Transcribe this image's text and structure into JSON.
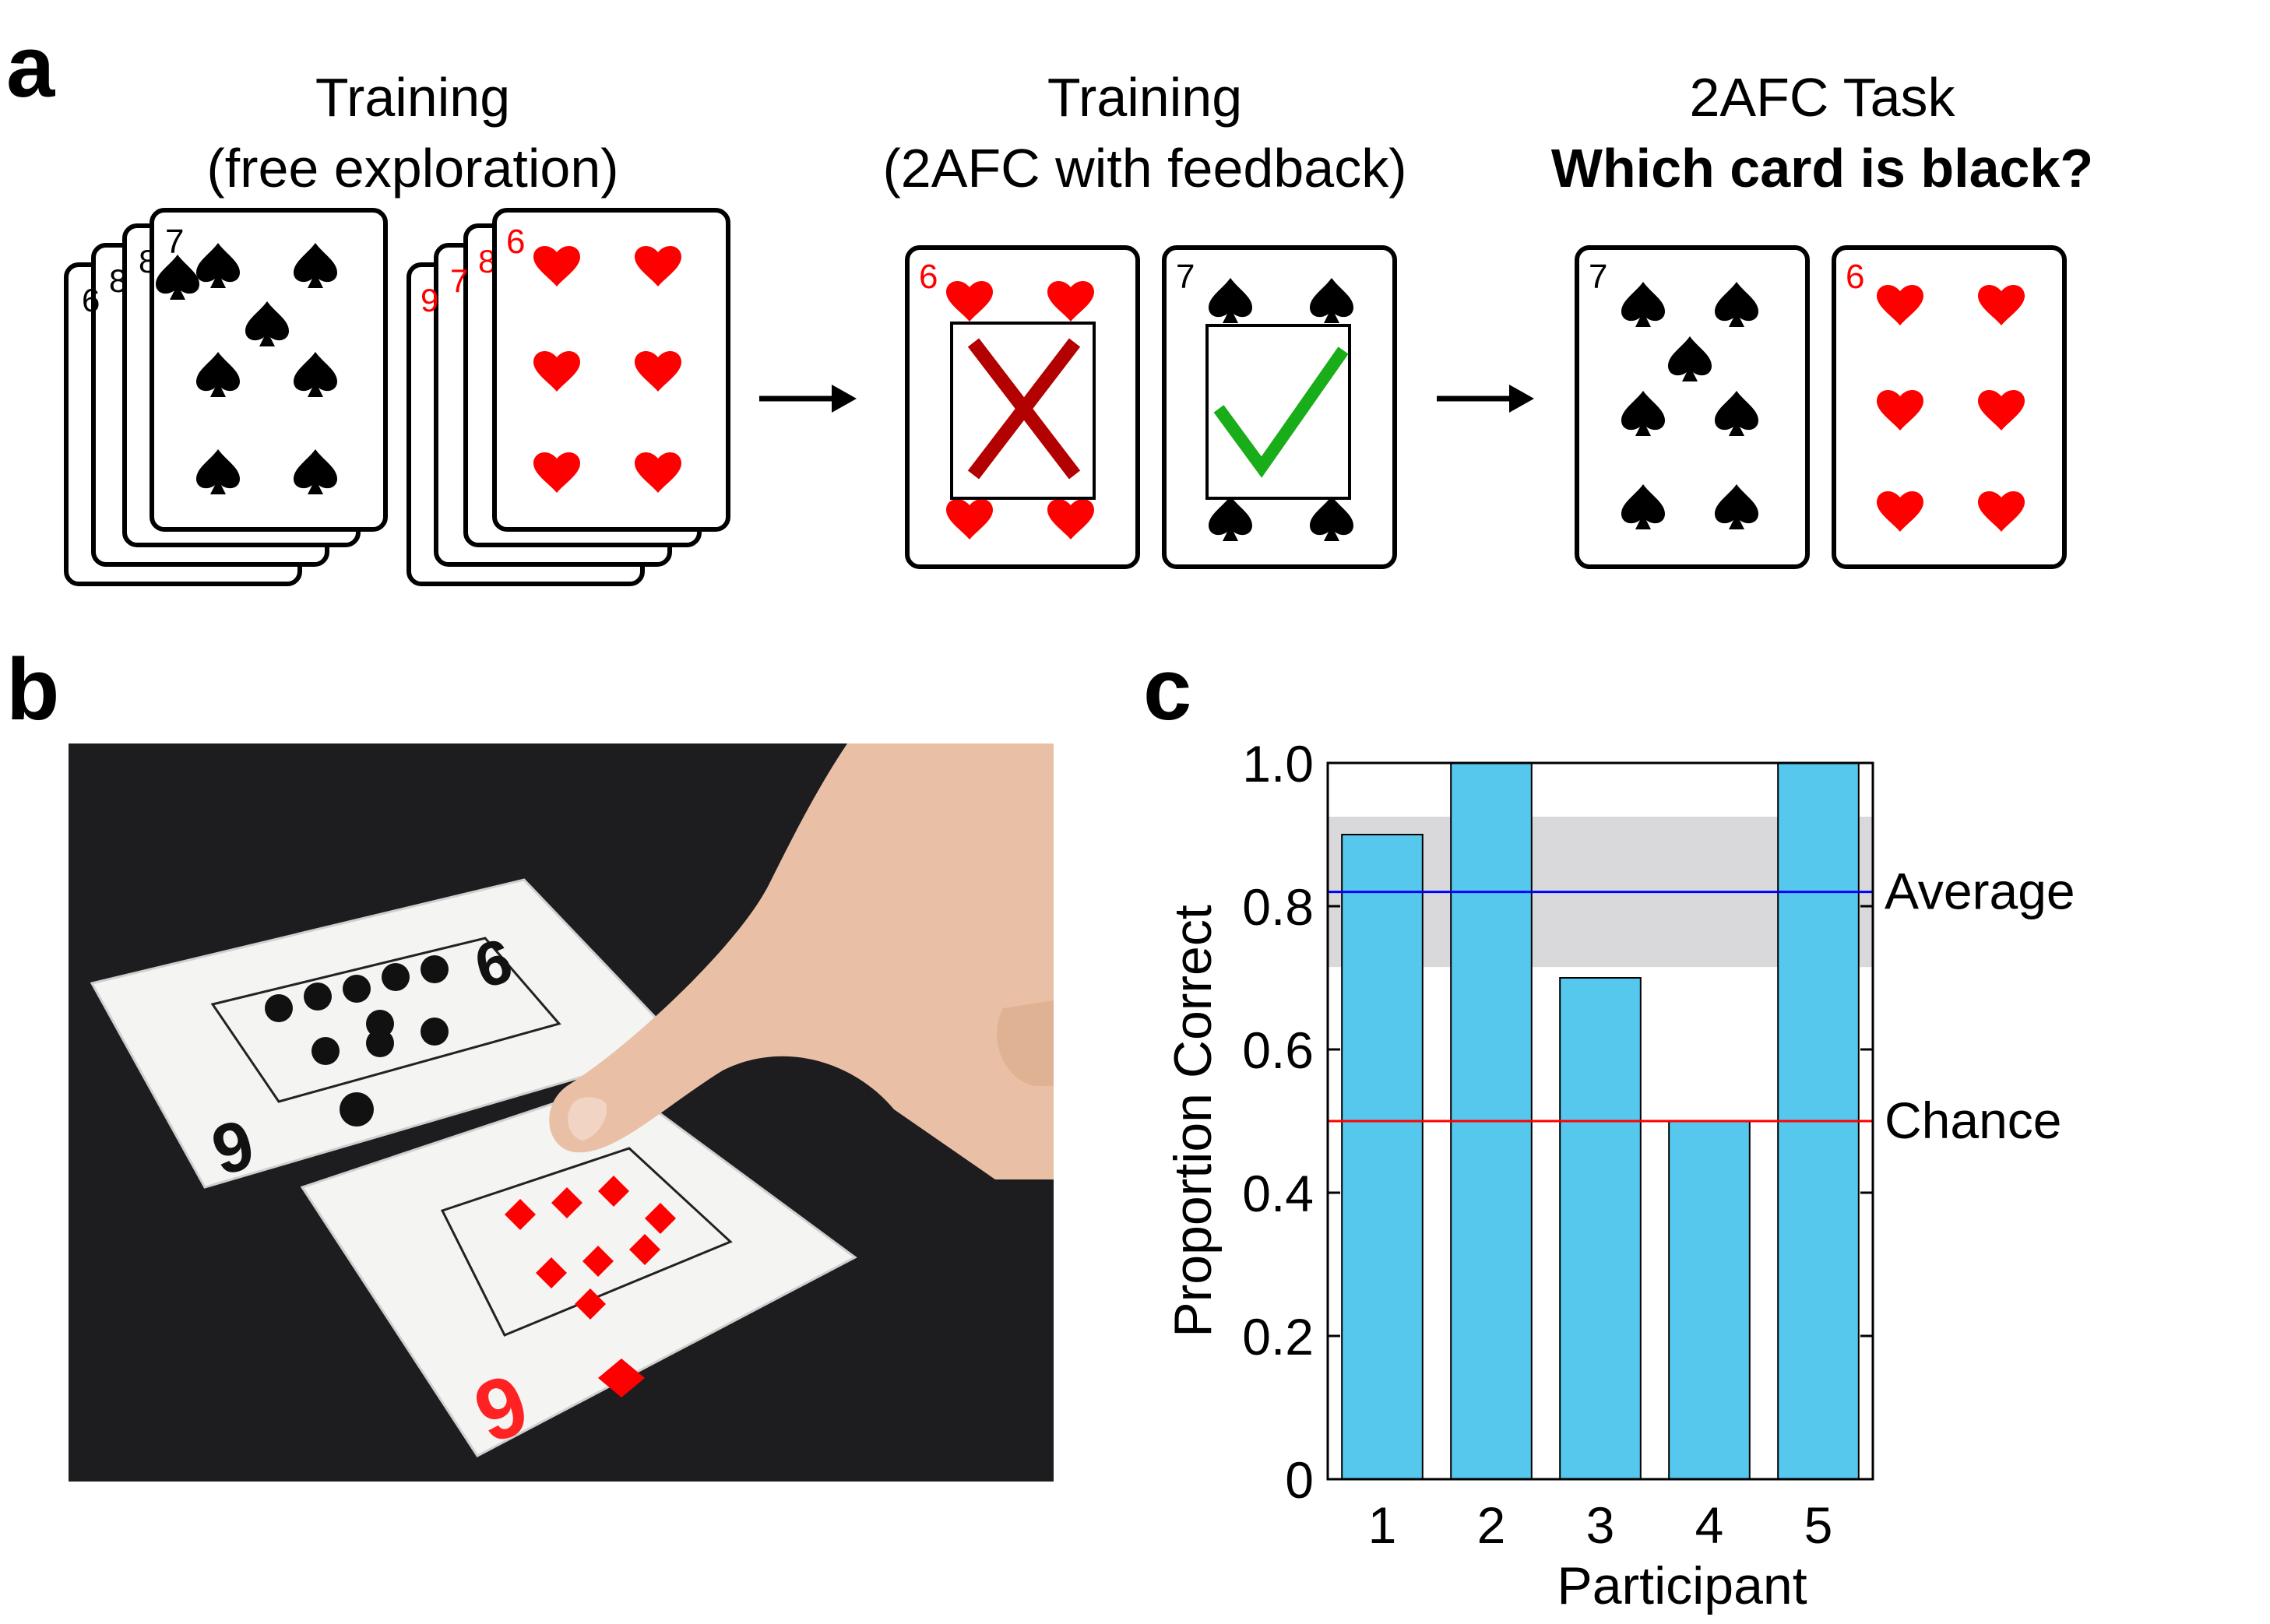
{
  "panel_a": {
    "letter": "a",
    "captions": [
      {
        "line1": "Training",
        "line2": "(free exploration)"
      },
      {
        "line1": "Training",
        "line2": "(2AFC with feedback)"
      },
      {
        "line1": "2AFC Task",
        "line2": "Which card is black?"
      }
    ],
    "card_ranks": {
      "spade": "7",
      "heart": "6",
      "stack_black": [
        "6",
        "8",
        "8"
      ],
      "stack_red": [
        "9",
        "7",
        "8"
      ]
    },
    "suit_colors": {
      "black": "#000000",
      "red": "#ff0000"
    },
    "feedback": {
      "wrong_icon": "x-icon",
      "wrong_color": "#b30000",
      "right_icon": "check-icon",
      "right_color": "#1aad1a"
    }
  },
  "panel_b": {
    "letter": "b",
    "photo_description_icon": "photo-of-finger-touching-nine-of-diamonds-next-to-nine-of-clubs",
    "card_ranks": {
      "clubs": "9",
      "diamonds": "9"
    }
  },
  "panel_c": {
    "letter": "c"
  },
  "chart_data": {
    "type": "bar",
    "xlabel": "Participant",
    "ylabel": "Proportion Correct",
    "categories": [
      "1",
      "2",
      "3",
      "4",
      "5"
    ],
    "values": [
      0.9,
      1.0,
      0.7,
      0.5,
      1.0
    ],
    "ylim": [
      0,
      1.0
    ],
    "yticks": [
      "0",
      "0.2",
      "0.4",
      "0.6",
      "0.8",
      "1.0"
    ],
    "bar_color": "#56c8ee",
    "reference_lines": [
      {
        "label": "Average",
        "value": 0.82,
        "color": "#0000ff"
      },
      {
        "label": "Chance",
        "value": 0.5,
        "color": "#ff0000"
      }
    ],
    "band": {
      "low": 0.715,
      "high": 0.925,
      "color": "#d9d9db"
    }
  }
}
